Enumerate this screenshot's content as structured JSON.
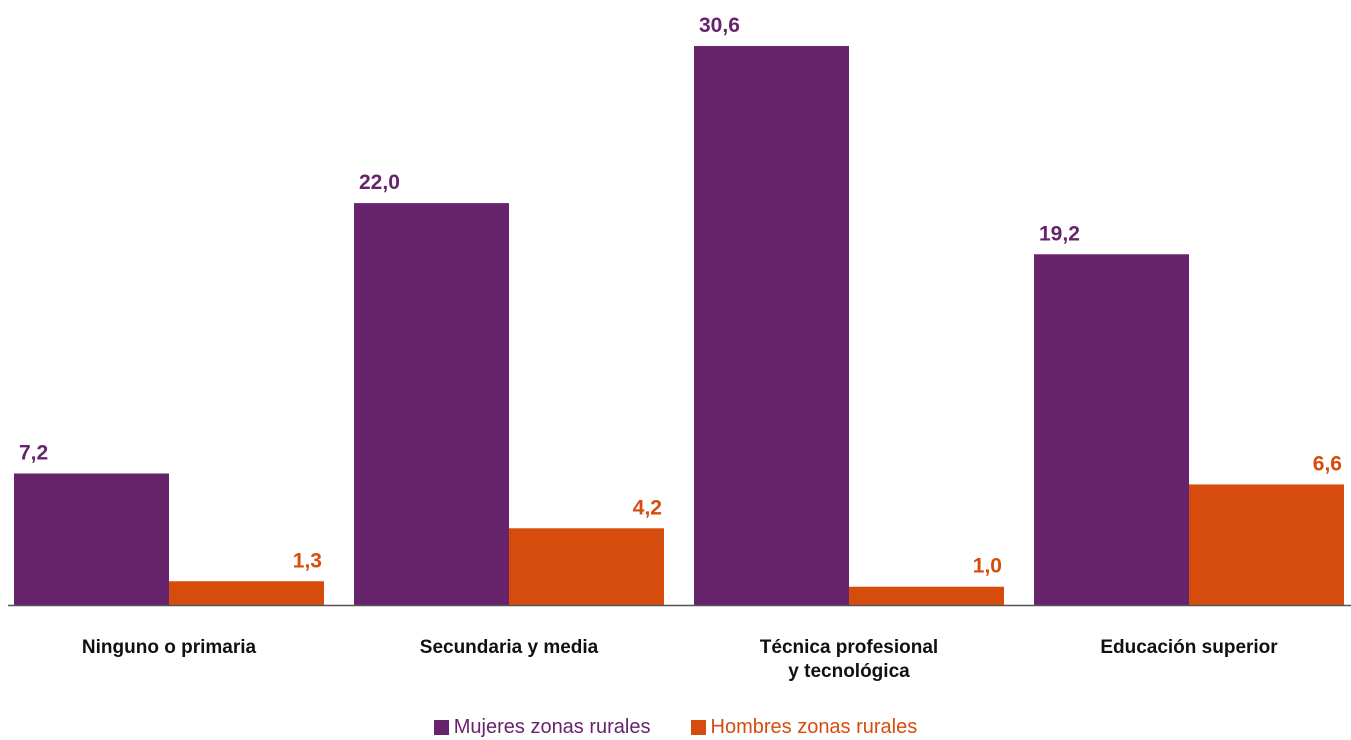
{
  "colors": {
    "mujeres": "#68236d",
    "hombres": "#d64c0c",
    "axis": "#555555"
  },
  "legend": {
    "items": [
      {
        "label": "Mujeres zonas rurales",
        "color": "#68236d"
      },
      {
        "label": "Hombres zonas rurales",
        "color": "#d64c0c"
      }
    ]
  },
  "chart_data": {
    "type": "bar",
    "categories": [
      [
        "Ninguno o primaria"
      ],
      [
        "Secundaria y media"
      ],
      [
        "Técnica profesional",
        "y tecnológica"
      ],
      [
        "Educación superior"
      ]
    ],
    "series": [
      {
        "name": "Mujeres zonas rurales",
        "values": [
          7.2,
          22.0,
          30.6,
          19.2
        ],
        "labels": [
          "7,2",
          "22,0",
          "30,6",
          "19,2"
        ]
      },
      {
        "name": "Hombres zonas rurales",
        "values": [
          1.3,
          4.2,
          1.0,
          6.6
        ],
        "labels": [
          "1,3",
          "4,2",
          "1,0",
          "6,6"
        ]
      }
    ],
    "title": "",
    "xlabel": "",
    "ylabel": "",
    "ylim": [
      0,
      30.6
    ],
    "grid": false,
    "legend_position": "bottom"
  }
}
